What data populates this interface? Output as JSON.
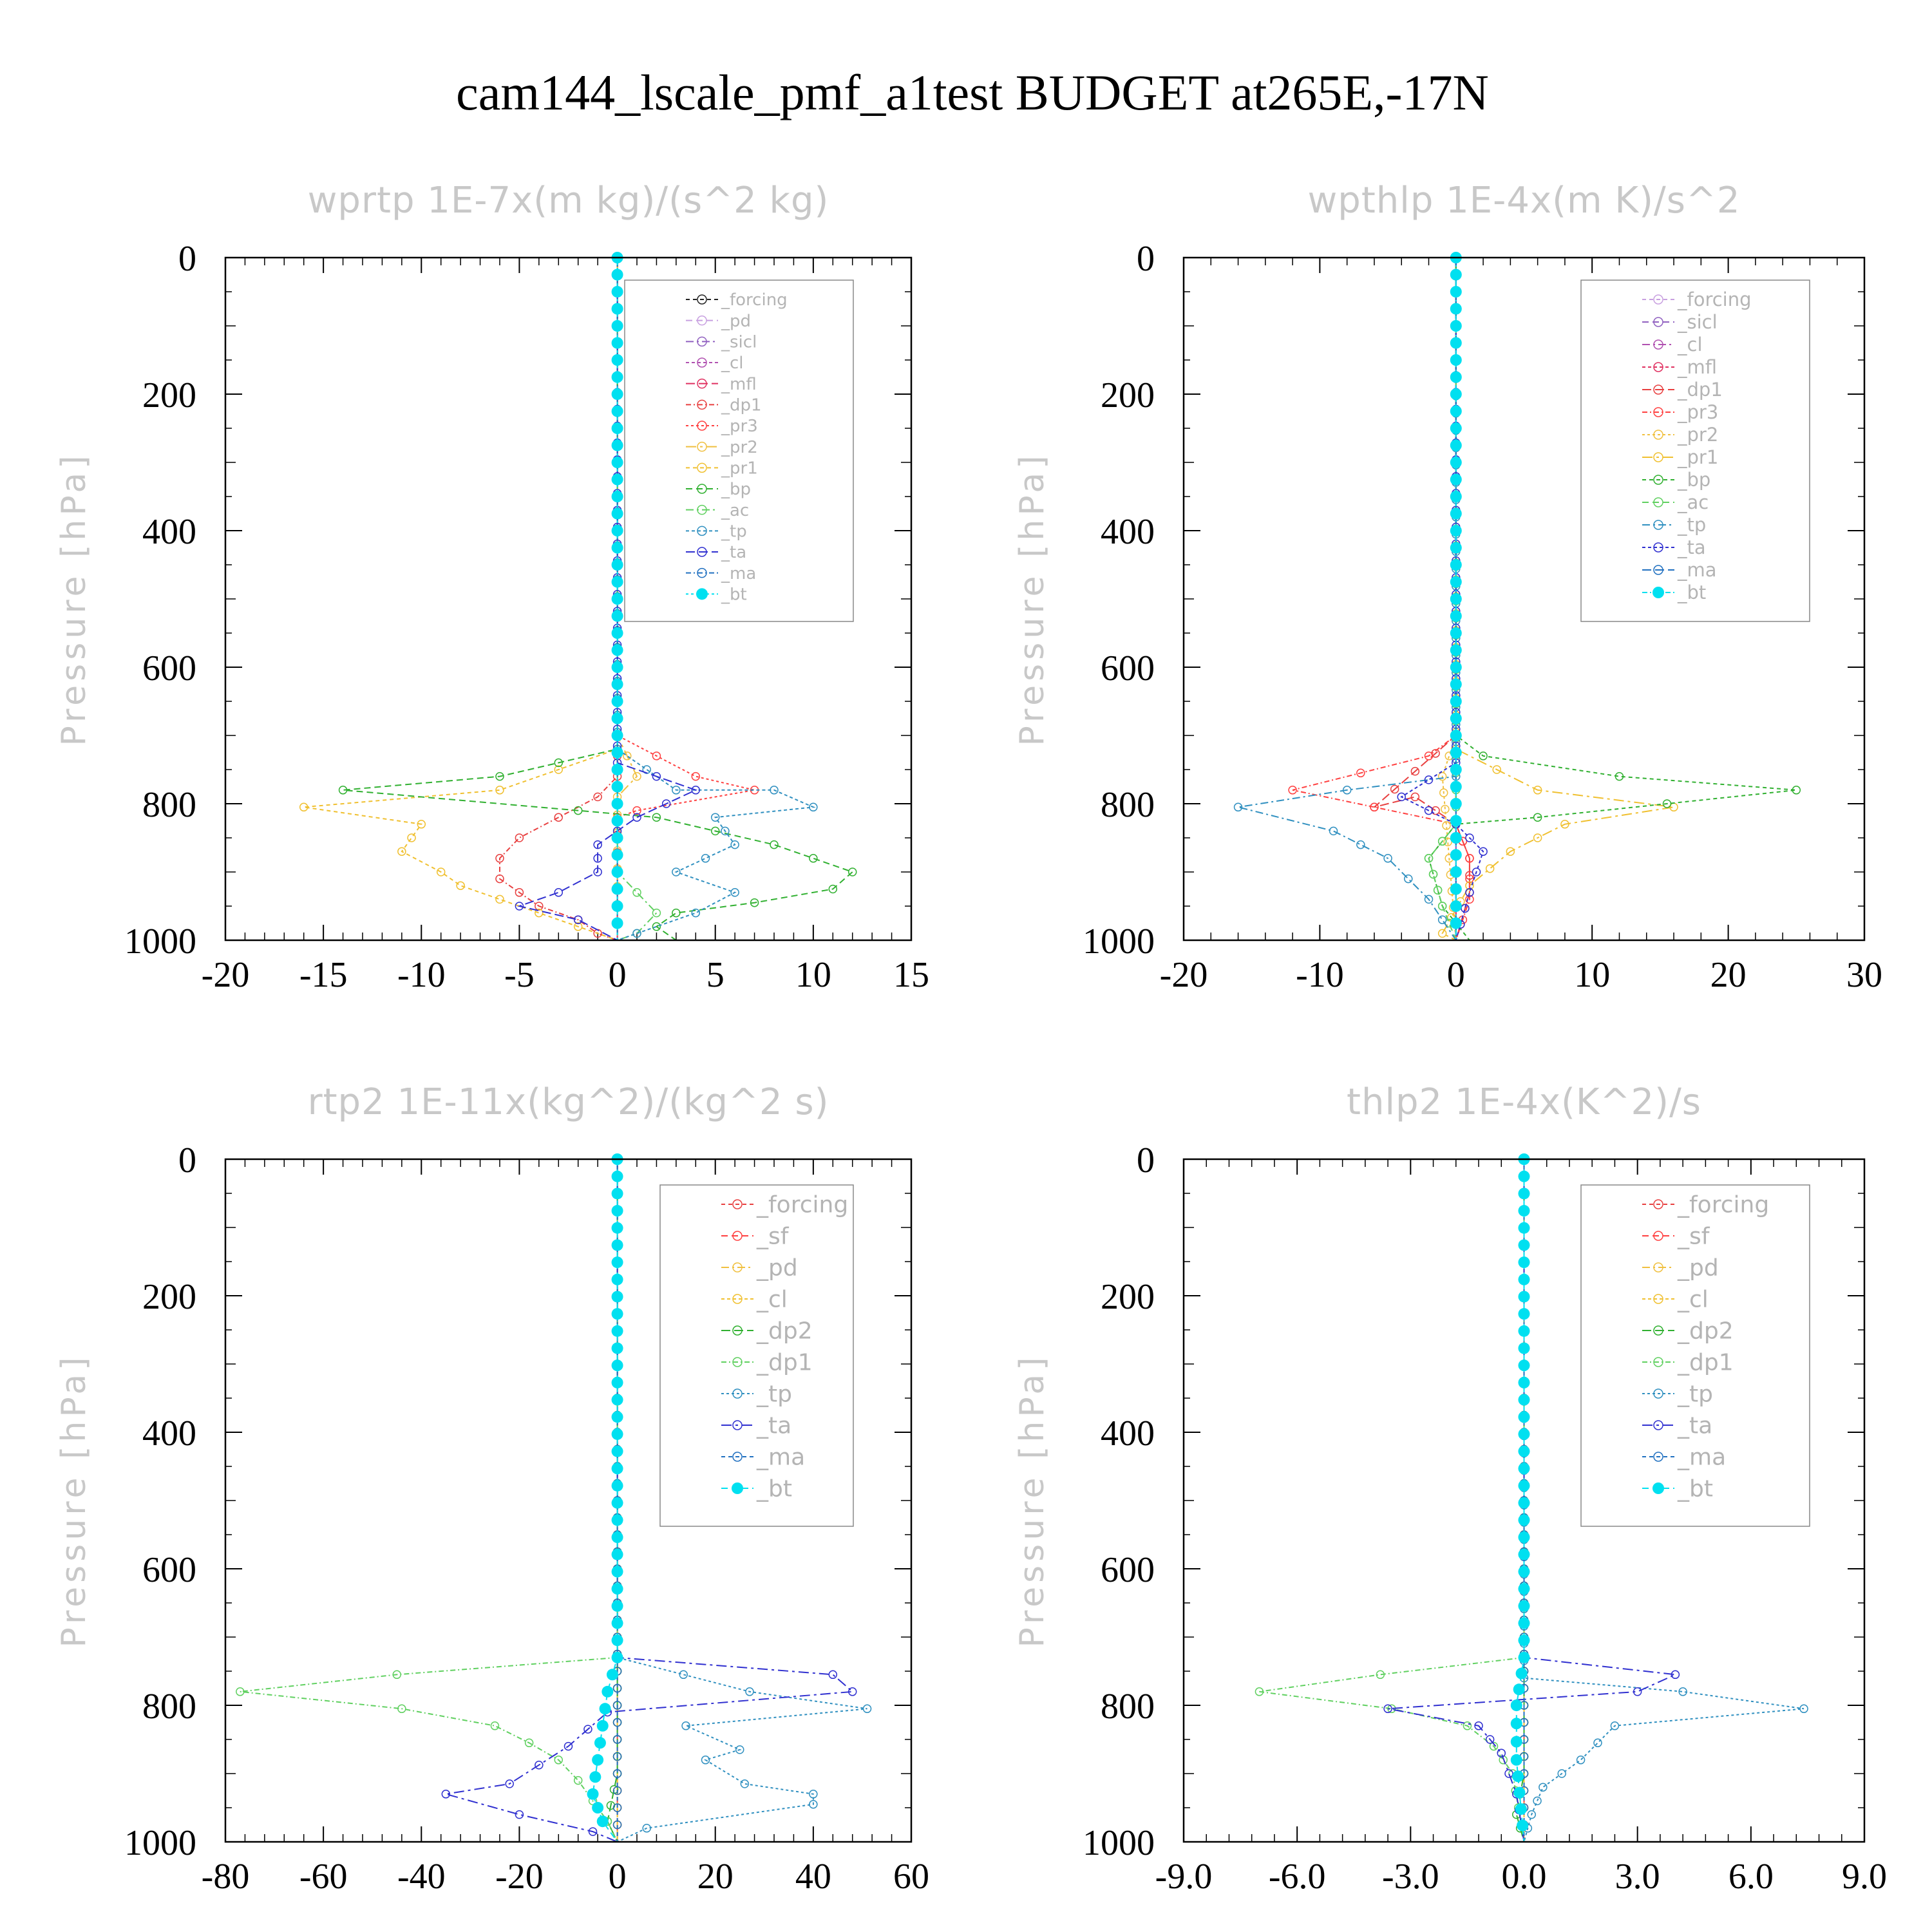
{
  "figure": {
    "title": "cam144_lscale_pmf_a1test  BUDGET at265E,-17N"
  },
  "chart_data": [
    {
      "type": "line",
      "title": "wprtp   1E-7x(m kg)/(s^2 kg)",
      "ylabel": "Pressure [hPa]",
      "xlim": [
        -20,
        15
      ],
      "ylim": [
        1000,
        0
      ],
      "xticks": [
        -20,
        -15,
        -10,
        -5,
        0,
        5,
        10,
        15
      ],
      "xtick_labels": [
        "-20",
        "-15",
        "-10",
        "-5",
        "0",
        "5",
        "10",
        "15"
      ],
      "yticks": [
        0,
        200,
        400,
        600,
        800,
        1000
      ],
      "ytick_labels": [
        "0",
        "200",
        "400",
        "600",
        "800",
        "1000"
      ],
      "legend_labels": [
        "_forcing",
        "_pd",
        "_sicl",
        "_cl",
        "_mfl",
        "_dp1",
        "_pr3",
        "_pr2",
        "_pr1",
        "_bp",
        "_ac",
        "_tp",
        "_ta",
        "_ma",
        "_bt"
      ],
      "series": [
        {
          "name": "_forcing",
          "color": "#222222",
          "x": [
            0,
            0
          ],
          "y": [
            0,
            1000
          ]
        },
        {
          "name": "_pd",
          "color": "#c8a0e0",
          "x": [
            0,
            0
          ],
          "y": [
            0,
            1000
          ]
        },
        {
          "name": "_sicl",
          "color": "#9060c0",
          "x": [
            0,
            0
          ],
          "y": [
            0,
            1000
          ]
        },
        {
          "name": "_cl",
          "color": "#b050b0",
          "x": [
            0,
            0
          ],
          "y": [
            0,
            1000
          ]
        },
        {
          "name": "_mfl",
          "color": "#e03060",
          "x": [
            0,
            0
          ],
          "y": [
            0,
            1000
          ]
        },
        {
          "name": "_dp1",
          "color": "#e84040",
          "x": [
            0,
            0,
            0,
            -1,
            -3,
            -5,
            -6,
            -6,
            -5,
            -4,
            -2,
            -1,
            0
          ],
          "y": [
            0,
            700,
            760,
            790,
            820,
            850,
            880,
            910,
            930,
            950,
            970,
            990,
            1000
          ]
        },
        {
          "name": "_pr3",
          "color": "#ff4040",
          "x": [
            0,
            0,
            4,
            7,
            1,
            0,
            0
          ],
          "y": [
            0,
            700,
            760,
            780,
            810,
            820,
            1000
          ]
        },
        {
          "name": "_pr2",
          "color": "#f0c040",
          "x": [
            0,
            0,
            1,
            0,
            0
          ],
          "y": [
            0,
            700,
            760,
            790,
            1000
          ]
        },
        {
          "name": "_pr1",
          "color": "#f0c030",
          "x": [
            0,
            0,
            -6,
            -16,
            -10,
            -11,
            -9,
            -8,
            -6,
            -4,
            -2,
            0
          ],
          "y": [
            0,
            720,
            780,
            805,
            830,
            870,
            900,
            920,
            940,
            960,
            980,
            1000
          ]
        },
        {
          "name": "_bp",
          "color": "#30b030",
          "x": [
            0,
            0,
            -6,
            -14,
            -2,
            2,
            8,
            12,
            11,
            7,
            3,
            2,
            3
          ],
          "y": [
            0,
            720,
            760,
            780,
            810,
            820,
            860,
            900,
            925,
            945,
            960,
            980,
            1000
          ]
        },
        {
          "name": "_ac",
          "color": "#60d060",
          "x": [
            0,
            0,
            2,
            1,
            0
          ],
          "y": [
            0,
            900,
            960,
            990,
            1000
          ]
        },
        {
          "name": "_tp",
          "color": "#3090c0",
          "x": [
            0,
            0,
            3,
            8,
            10,
            5,
            6,
            3,
            6,
            4,
            1,
            0
          ],
          "y": [
            0,
            720,
            780,
            780,
            805,
            820,
            860,
            900,
            930,
            960,
            990,
            1000
          ]
        },
        {
          "name": "_ta",
          "color": "#3030d0",
          "x": [
            0,
            0,
            4,
            1,
            -1,
            -1,
            -3,
            -5,
            -2,
            0
          ],
          "y": [
            0,
            740,
            780,
            820,
            860,
            900,
            930,
            950,
            970,
            1000
          ]
        },
        {
          "name": "_ma",
          "color": "#2070c0",
          "x": [
            0,
            0
          ],
          "y": [
            0,
            1000
          ]
        },
        {
          "name": "_bt",
          "color": "#00e0f0",
          "x": [
            0,
            0
          ],
          "y": [
            0,
            1000
          ]
        }
      ]
    },
    {
      "type": "line",
      "title": "wpthlp   1E-4x(m K)/s^2",
      "ylabel": "Pressure [hPa]",
      "xlim": [
        -20,
        30
      ],
      "ylim": [
        1000,
        0
      ],
      "xticks": [
        -20,
        -10,
        0,
        10,
        20,
        30
      ],
      "xtick_labels": [
        "-20",
        "-10",
        "0",
        "10",
        "20",
        "30"
      ],
      "yticks": [
        0,
        200,
        400,
        600,
        800,
        1000
      ],
      "ytick_labels": [
        "0",
        "200",
        "400",
        "600",
        "800",
        "1000"
      ],
      "legend_labels": [
        "_forcing",
        "_sicl",
        "_cl",
        "_mfl",
        "_dp1",
        "_pr3",
        "_pr2",
        "_pr1",
        "_bp",
        "_ac",
        "_tp",
        "_ta",
        "_ma",
        "_bt"
      ],
      "series": [
        {
          "name": "_forcing",
          "color": "#c8a0e0",
          "x": [
            0,
            0
          ],
          "y": [
            0,
            1000
          ]
        },
        {
          "name": "_sicl",
          "color": "#9060c0",
          "x": [
            0,
            0
          ],
          "y": [
            0,
            1000
          ]
        },
        {
          "name": "_cl",
          "color": "#b050b0",
          "x": [
            0,
            0
          ],
          "y": [
            0,
            1000
          ]
        },
        {
          "name": "_mfl",
          "color": "#e03060",
          "x": [
            0,
            0
          ],
          "y": [
            0,
            1000
          ]
        },
        {
          "name": "_dp1",
          "color": "#e84040",
          "x": [
            0,
            0,
            -6,
            -3,
            0,
            1,
            1,
            0
          ],
          "y": [
            0,
            700,
            805,
            790,
            830,
            880,
            930,
            1000
          ]
        },
        {
          "name": "_pr3",
          "color": "#ff4040",
          "x": [
            0,
            0,
            -2,
            -12,
            0,
            1,
            1,
            0
          ],
          "y": [
            0,
            700,
            730,
            780,
            830,
            880,
            940,
            1000
          ]
        },
        {
          "name": "_pr2",
          "color": "#f0c040",
          "x": [
            0,
            0,
            -1,
            0
          ],
          "y": [
            0,
            700,
            760,
            1000
          ]
        },
        {
          "name": "_pr1",
          "color": "#f0c030",
          "x": [
            0,
            0,
            6,
            16,
            8,
            4,
            1,
            -1,
            0
          ],
          "y": [
            0,
            720,
            780,
            805,
            830,
            870,
            920,
            990,
            1000
          ]
        },
        {
          "name": "_bp",
          "color": "#30b030",
          "x": [
            0,
            0,
            2,
            12,
            25,
            6,
            0,
            -2,
            -1,
            1
          ],
          "y": [
            0,
            700,
            730,
            760,
            780,
            820,
            830,
            880,
            950,
            1000
          ]
        },
        {
          "name": "_ac",
          "color": "#60d060",
          "x": [
            0,
            0,
            -2,
            -1,
            0
          ],
          "y": [
            0,
            830,
            880,
            950,
            1000
          ]
        },
        {
          "name": "_tp",
          "color": "#3090c0",
          "x": [
            0,
            0,
            -8,
            -16,
            -9,
            -5,
            -2,
            0
          ],
          "y": [
            0,
            760,
            780,
            805,
            840,
            880,
            940,
            1000
          ]
        },
        {
          "name": "_ta",
          "color": "#3030d0",
          "x": [
            0,
            0,
            -4,
            0,
            2,
            1,
            0
          ],
          "y": [
            0,
            740,
            790,
            830,
            870,
            930,
            1000
          ]
        },
        {
          "name": "_ma",
          "color": "#2070c0",
          "x": [
            0,
            0
          ],
          "y": [
            0,
            1000
          ]
        },
        {
          "name": "_bt",
          "color": "#00e0f0",
          "x": [
            0,
            0
          ],
          "y": [
            0,
            1000
          ]
        }
      ]
    },
    {
      "type": "line",
      "title": "rtp2   1E-11x(kg^2)/(kg^2 s)",
      "ylabel": "Pressure [hPa]",
      "xlim": [
        -80,
        60
      ],
      "ylim": [
        1000,
        0
      ],
      "xticks": [
        -80,
        -60,
        -40,
        -20,
        0,
        20,
        40,
        60
      ],
      "xtick_labels": [
        "-80",
        "-60",
        "-40",
        "-20",
        "0",
        "20",
        "40",
        "60"
      ],
      "yticks": [
        0,
        200,
        400,
        600,
        800,
        1000
      ],
      "ytick_labels": [
        "0",
        "200",
        "400",
        "600",
        "800",
        "1000"
      ],
      "legend_labels": [
        "_forcing",
        "_sf",
        "_pd",
        "_cl",
        "_dp2",
        "_dp1",
        "_tp",
        "_ta",
        "_ma",
        "_bt"
      ],
      "series": [
        {
          "name": "_forcing",
          "color": "#e84040",
          "x": [
            0,
            0
          ],
          "y": [
            0,
            1000
          ]
        },
        {
          "name": "_sf",
          "color": "#ff4040",
          "x": [
            0,
            0
          ],
          "y": [
            0,
            1000
          ]
        },
        {
          "name": "_pd",
          "color": "#f0c040",
          "x": [
            0,
            0
          ],
          "y": [
            0,
            1000
          ]
        },
        {
          "name": "_cl",
          "color": "#f0c030",
          "x": [
            0,
            0
          ],
          "y": [
            0,
            1000
          ]
        },
        {
          "name": "_dp2",
          "color": "#30b030",
          "x": [
            0,
            0,
            -2,
            0
          ],
          "y": [
            0,
            900,
            970,
            1000
          ]
        },
        {
          "name": "_dp1",
          "color": "#60d060",
          "x": [
            0,
            0,
            -45,
            -77,
            -44,
            -25,
            -18,
            -12,
            -8,
            -5,
            -2,
            0
          ],
          "y": [
            0,
            730,
            755,
            780,
            805,
            830,
            855,
            880,
            910,
            940,
            970,
            1000
          ]
        },
        {
          "name": "_tp",
          "color": "#3090c0",
          "x": [
            0,
            0,
            27,
            51,
            14,
            25,
            18,
            26,
            40,
            40,
            6,
            0
          ],
          "y": [
            0,
            730,
            780,
            805,
            830,
            865,
            880,
            915,
            930,
            945,
            980,
            1000
          ]
        },
        {
          "name": "_ta",
          "color": "#3030d0",
          "x": [
            0,
            0,
            44,
            48,
            -2,
            -10,
            -22,
            -35,
            -20,
            -5,
            0
          ],
          "y": [
            0,
            730,
            755,
            780,
            810,
            860,
            915,
            930,
            960,
            985,
            1000
          ]
        },
        {
          "name": "_ma",
          "color": "#2070c0",
          "x": [
            0,
            0
          ],
          "y": [
            0,
            1000
          ]
        },
        {
          "name": "_bt",
          "color": "#00e0f0",
          "x": [
            0,
            0,
            -2,
            -3,
            -4,
            -5,
            -3,
            0
          ],
          "y": [
            0,
            730,
            780,
            830,
            880,
            930,
            970,
            1000
          ]
        }
      ]
    },
    {
      "type": "line",
      "title": "thlp2   1E-4x(K^2)/s",
      "ylabel": "Pressure [hPa]",
      "xlim": [
        -9.0,
        9.0
      ],
      "ylim": [
        1000,
        0
      ],
      "xticks": [
        -9,
        -6,
        -3,
        0,
        3,
        6,
        9
      ],
      "xtick_labels": [
        "-9.0",
        "-6.0",
        "-3.0",
        "0.0",
        "3.0",
        "6.0",
        "9.0"
      ],
      "yticks": [
        0,
        200,
        400,
        600,
        800,
        1000
      ],
      "ytick_labels": [
        "0",
        "200",
        "400",
        "600",
        "800",
        "1000"
      ],
      "legend_labels": [
        "_forcing",
        "_sf",
        "_pd",
        "_cl",
        "_dp2",
        "_dp1",
        "_tp",
        "_ta",
        "_ma",
        "_bt"
      ],
      "series": [
        {
          "name": "_forcing",
          "color": "#e84040",
          "x": [
            0,
            0
          ],
          "y": [
            0,
            1000
          ]
        },
        {
          "name": "_sf",
          "color": "#ff4040",
          "x": [
            0,
            0
          ],
          "y": [
            0,
            1000
          ]
        },
        {
          "name": "_pd",
          "color": "#f0c040",
          "x": [
            0,
            0
          ],
          "y": [
            0,
            1000
          ]
        },
        {
          "name": "_cl",
          "color": "#f0c030",
          "x": [
            0,
            0
          ],
          "y": [
            0,
            1000
          ]
        },
        {
          "name": "_dp2",
          "color": "#30b030",
          "x": [
            0,
            0,
            -0.2,
            0
          ],
          "y": [
            0,
            900,
            960,
            1000
          ]
        },
        {
          "name": "_dp1",
          "color": "#60d060",
          "x": [
            0,
            0,
            -3.8,
            -7.0,
            -3.5,
            -1.5,
            -0.8,
            -0.3,
            0
          ],
          "y": [
            0,
            730,
            755,
            780,
            805,
            830,
            860,
            900,
            1000
          ]
        },
        {
          "name": "_tp",
          "color": "#3090c0",
          "x": [
            0,
            0,
            4.2,
            7.4,
            2.4,
            1.5,
            0.5,
            0.2,
            0
          ],
          "y": [
            0,
            760,
            780,
            805,
            830,
            880,
            920,
            960,
            1000
          ]
        },
        {
          "name": "_ta",
          "color": "#3030d0",
          "x": [
            0,
            0,
            4.0,
            3.0,
            -3.6,
            -1.2,
            -0.6,
            -0.2,
            0
          ],
          "y": [
            0,
            730,
            755,
            780,
            805,
            830,
            870,
            930,
            1000
          ]
        },
        {
          "name": "_ma",
          "color": "#2070c0",
          "x": [
            0,
            0
          ],
          "y": [
            0,
            1000
          ]
        },
        {
          "name": "_bt",
          "color": "#00e0f0",
          "x": [
            0,
            0,
            -0.2,
            -0.2,
            0
          ],
          "y": [
            0,
            730,
            800,
            880,
            1000
          ]
        }
      ]
    }
  ]
}
